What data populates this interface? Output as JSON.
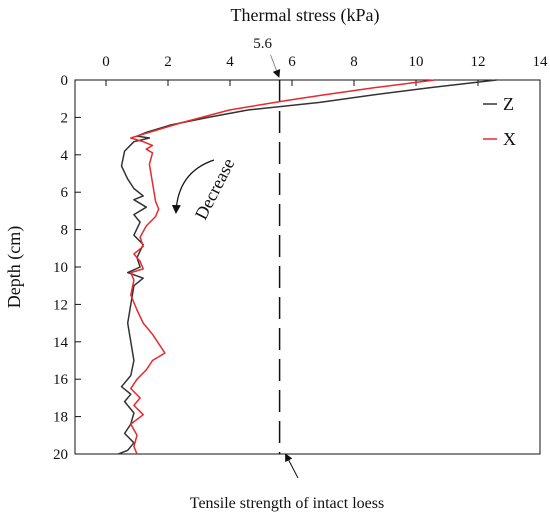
{
  "chart_data": {
    "type": "line",
    "x_axis": {
      "label": "Thermal stress (kPa)",
      "range": [
        -1,
        14
      ],
      "ticks": [
        0,
        2,
        4,
        6,
        8,
        10,
        12,
        14
      ],
      "position": "top"
    },
    "y_axis": {
      "label": "Depth (cm)",
      "range": [
        0,
        20
      ],
      "ticks": [
        0,
        2,
        4,
        6,
        8,
        10,
        12,
        14,
        16,
        18,
        20
      ],
      "inverted": true
    },
    "series": [
      {
        "name": "Z",
        "color": "#333333",
        "points": [
          [
            12.6,
            0.0
          ],
          [
            10.5,
            0.4
          ],
          [
            8.6,
            0.8
          ],
          [
            6.9,
            1.2
          ],
          [
            4.6,
            1.6
          ],
          [
            3.3,
            2.0
          ],
          [
            2.1,
            2.4
          ],
          [
            1.3,
            2.8
          ],
          [
            1.0,
            3.0
          ],
          [
            1.4,
            3.1
          ],
          [
            0.9,
            3.3
          ],
          [
            0.6,
            3.8
          ],
          [
            0.5,
            4.6
          ],
          [
            0.7,
            5.3
          ],
          [
            0.9,
            5.8
          ],
          [
            1.2,
            6.2
          ],
          [
            0.9,
            6.4
          ],
          [
            1.3,
            6.8
          ],
          [
            0.9,
            7.2
          ],
          [
            1.1,
            7.6
          ],
          [
            0.9,
            8.3
          ],
          [
            1.2,
            8.8
          ],
          [
            1.0,
            9.5
          ],
          [
            1.1,
            10.0
          ],
          [
            0.7,
            10.3
          ],
          [
            1.2,
            10.6
          ],
          [
            0.9,
            11.0
          ],
          [
            0.8,
            12.0
          ],
          [
            0.7,
            13.0
          ],
          [
            0.8,
            14.0
          ],
          [
            0.9,
            15.0
          ],
          [
            0.8,
            15.8
          ],
          [
            0.5,
            16.4
          ],
          [
            0.8,
            16.8
          ],
          [
            0.6,
            17.2
          ],
          [
            0.9,
            17.8
          ],
          [
            0.8,
            18.4
          ],
          [
            0.6,
            18.9
          ],
          [
            0.9,
            19.4
          ],
          [
            0.7,
            19.8
          ],
          [
            0.4,
            20.0
          ]
        ]
      },
      {
        "name": "X",
        "color": "#e8282d",
        "points": [
          [
            10.6,
            0.0
          ],
          [
            8.7,
            0.4
          ],
          [
            7.0,
            0.8
          ],
          [
            5.8,
            1.1
          ],
          [
            4.0,
            1.6
          ],
          [
            2.4,
            2.3
          ],
          [
            1.2,
            2.9
          ],
          [
            0.8,
            3.1
          ],
          [
            1.2,
            3.3
          ],
          [
            1.5,
            3.5
          ],
          [
            1.3,
            3.7
          ],
          [
            1.5,
            3.9
          ],
          [
            1.4,
            4.5
          ],
          [
            1.5,
            5.5
          ],
          [
            1.6,
            6.5
          ],
          [
            1.7,
            6.9
          ],
          [
            1.6,
            7.3
          ],
          [
            1.3,
            7.8
          ],
          [
            1.1,
            8.4
          ],
          [
            1.2,
            8.9
          ],
          [
            0.9,
            9.3
          ],
          [
            1.1,
            9.7
          ],
          [
            1.2,
            10.1
          ],
          [
            0.8,
            10.3
          ],
          [
            0.9,
            10.7
          ],
          [
            0.8,
            11.5
          ],
          [
            1.0,
            12.3
          ],
          [
            1.2,
            13.0
          ],
          [
            1.5,
            13.6
          ],
          [
            1.7,
            14.1
          ],
          [
            1.9,
            14.6
          ],
          [
            1.5,
            15.0
          ],
          [
            1.3,
            15.5
          ],
          [
            1.0,
            16.0
          ],
          [
            0.8,
            16.5
          ],
          [
            1.1,
            17.0
          ],
          [
            0.9,
            17.4
          ],
          [
            1.2,
            17.9
          ],
          [
            0.8,
            18.4
          ],
          [
            1.0,
            19.0
          ],
          [
            0.9,
            19.6
          ],
          [
            1.0,
            20.0
          ]
        ]
      }
    ],
    "reference_line": {
      "x": 5.6,
      "label": "5.6",
      "style": "dashed"
    },
    "annotations": {
      "decrease": "Decrease",
      "tensile_note": "Tensile strength of intact loess"
    },
    "legend_position": "top-right",
    "grid": false
  }
}
